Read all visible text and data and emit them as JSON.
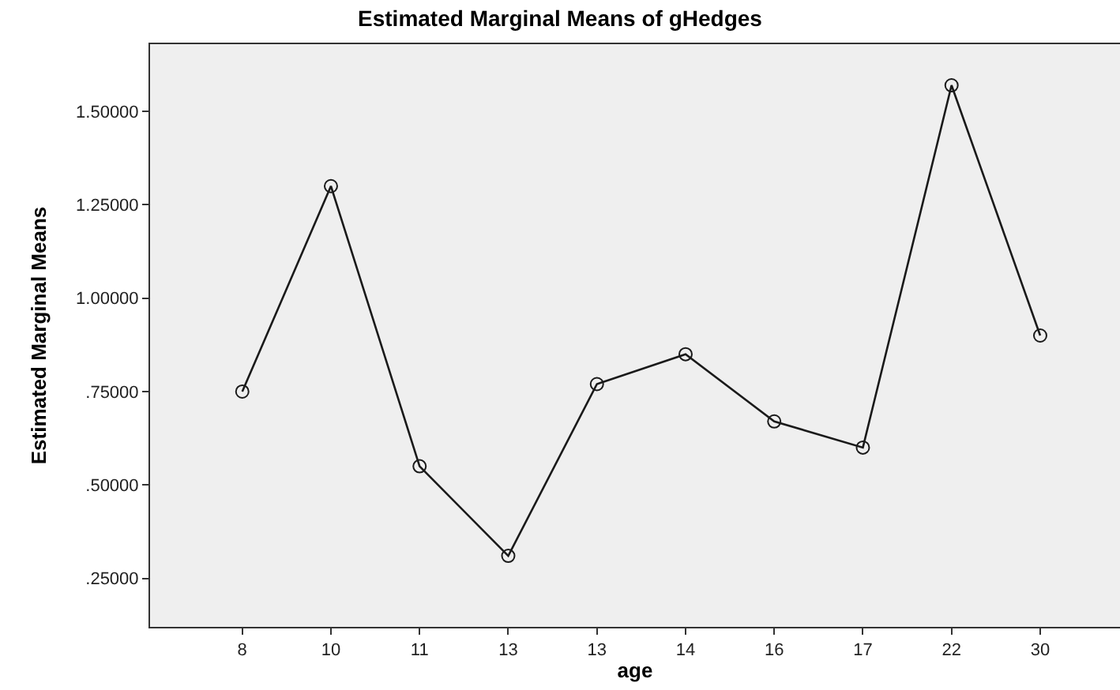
{
  "chart_data": {
    "type": "line",
    "title": "Estimated Marginal Means of gHedges",
    "xlabel": "age",
    "ylabel": "Estimated Marginal Means",
    "categories": [
      "8",
      "10",
      "11",
      "13",
      "13",
      "14",
      "16",
      "17",
      "22",
      "30"
    ],
    "series": [
      {
        "color": "#1a1a1a",
        "values": [
          0.75,
          1.3,
          0.55,
          0.31,
          0.77,
          0.85,
          0.67,
          0.6,
          1.57,
          0.9
        ]
      }
    ],
    "ylim": [
      0.12,
      1.68
    ],
    "yticks": [
      {
        "value": 0.25,
        "label": ".25000"
      },
      {
        "value": 0.5,
        "label": ".50000"
      },
      {
        "value": 0.75,
        "label": ".75000"
      },
      {
        "value": 1.0,
        "label": "1.00000"
      },
      {
        "value": 1.25,
        "label": "1.25000"
      },
      {
        "value": 1.5,
        "label": "1.50000"
      }
    ],
    "marker": "circle",
    "line_style": "solid",
    "grid": false
  }
}
